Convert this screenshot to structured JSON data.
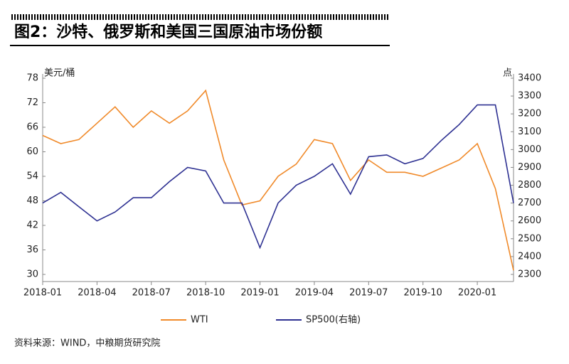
{
  "chart_data": {
    "type": "line",
    "title": "图2：沙特、俄罗斯和美国三国原油市场份额",
    "y_label": "美元/桶",
    "y2_label": "点",
    "source": "资料来源：WIND，中粮期货研究院",
    "x": [
      "2018-01",
      "2018-02",
      "2018-03",
      "2018-04",
      "2018-05",
      "2018-06",
      "2018-07",
      "2018-08",
      "2018-09",
      "2018-10",
      "2018-11",
      "2018-12",
      "2019-01",
      "2019-02",
      "2019-03",
      "2019-04",
      "2019-05",
      "2019-06",
      "2019-07",
      "2019-08",
      "2019-09",
      "2019-10",
      "2019-11",
      "2019-12",
      "2020-01",
      "2020-02",
      "2020-03"
    ],
    "xticks": [
      "2018-01",
      "2018-04",
      "2018-07",
      "2018-10",
      "2019-01",
      "2019-04",
      "2019-07",
      "2019-10",
      "2020-01"
    ],
    "series": [
      {
        "name": "WTI",
        "color": "#f08a2a",
        "values": [
          64,
          62,
          63,
          67,
          71,
          66,
          70,
          67,
          70,
          75,
          58,
          47,
          48,
          54,
          57,
          63,
          62,
          53,
          58,
          55,
          55,
          54,
          56,
          58,
          62,
          51,
          31
        ]
      },
      {
        "name": "SP500(右轴)",
        "color": "#2e3192",
        "axis": "y2",
        "values": [
          2700,
          2760,
          2680,
          2600,
          2650,
          2730,
          2730,
          2820,
          2900,
          2880,
          2700,
          2700,
          2450,
          2700,
          2800,
          2850,
          2920,
          2750,
          2960,
          2970,
          2920,
          2950,
          3050,
          3140,
          3250,
          3250,
          2700
        ]
      }
    ],
    "ylim": [
      30,
      78
    ],
    "yticks": [
      30,
      36,
      42,
      48,
      54,
      60,
      66,
      72,
      78
    ],
    "y2lim": [
      2300,
      3400
    ],
    "y2ticks": [
      2300,
      2400,
      2500,
      2600,
      2700,
      2800,
      2900,
      3000,
      3100,
      3200,
      3300,
      3400
    ]
  }
}
